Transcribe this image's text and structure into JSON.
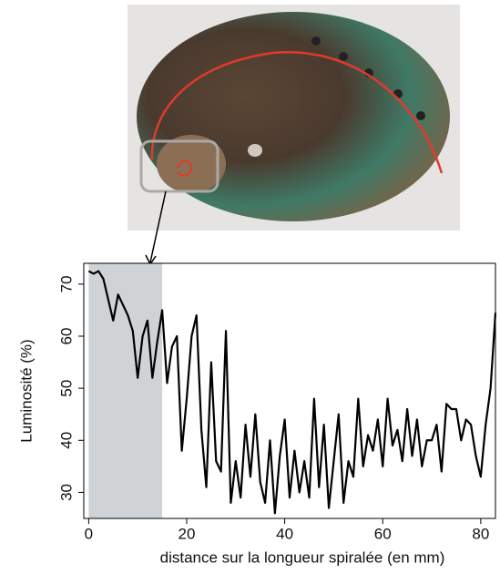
{
  "chart_data": {
    "type": "line",
    "xlabel": "distance sur la longueur spiralée (en mm)",
    "ylabel": "Luminosité (%)",
    "x": [
      0,
      1,
      2,
      3,
      4,
      5,
      6,
      7,
      8,
      9,
      10,
      11,
      12,
      13,
      14,
      15,
      16,
      17,
      18,
      19,
      20,
      21,
      22,
      23,
      24,
      25,
      26,
      27,
      28,
      29,
      30,
      31,
      32,
      33,
      34,
      35,
      36,
      37,
      38,
      39,
      40,
      41,
      42,
      43,
      44,
      45,
      46,
      47,
      48,
      49,
      50,
      51,
      52,
      53,
      54,
      55,
      56,
      57,
      58,
      59,
      60,
      61,
      62,
      63,
      64,
      65,
      66,
      67,
      68,
      69,
      70,
      71,
      72,
      73,
      74,
      75,
      76,
      77,
      78,
      79,
      80,
      81,
      82,
      83
    ],
    "series": [
      {
        "color": "#000000",
        "values": [
          72.5,
          72,
          72.5,
          71,
          67,
          63,
          68,
          66,
          64,
          61,
          52,
          60,
          63,
          52,
          59,
          65,
          51,
          58,
          60,
          38,
          48,
          60,
          64,
          42,
          31,
          55,
          36,
          34,
          61,
          28,
          36,
          29,
          43,
          33,
          45,
          32,
          28,
          40,
          26,
          37,
          44,
          29,
          38,
          30,
          36,
          29,
          48,
          31,
          43,
          27,
          36,
          45,
          28,
          36,
          33,
          48,
          35,
          41,
          38,
          44,
          35,
          48,
          39,
          42,
          36,
          46,
          37,
          44,
          35,
          40,
          40,
          43,
          34,
          47,
          46,
          46,
          40,
          44,
          43,
          37,
          33,
          43,
          50,
          64.5
        ]
      }
    ],
    "highlight": [
      0,
      15
    ],
    "highlight_color": "#d0d3d6",
    "xlim": [
      -1,
      83
    ],
    "ylim": [
      25,
      74
    ],
    "xticks": [
      0,
      20,
      40,
      60,
      80
    ],
    "yticks": [
      30,
      40,
      50,
      60,
      70
    ],
    "grid": false
  }
}
